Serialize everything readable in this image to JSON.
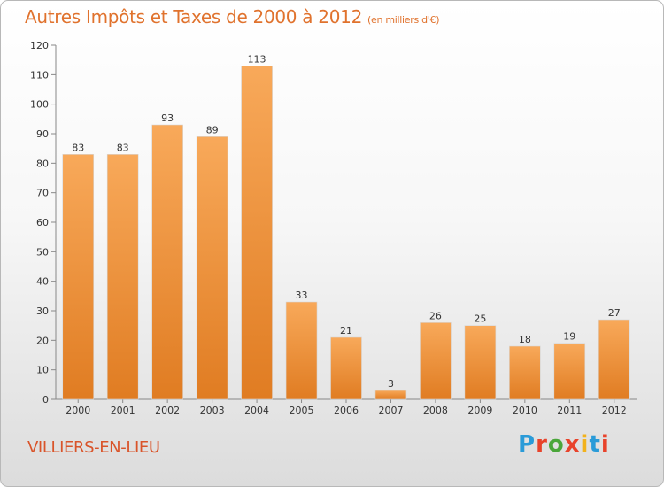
{
  "header": {
    "title": "Autres Impôts et Taxes de 2000 à 2012",
    "subtitle": "(en milliers d'€)"
  },
  "footer": {
    "commune": "VILLIERS-EN-LIEU",
    "logo_letters": [
      "P",
      "r",
      "o",
      "x",
      "i",
      "t",
      "i"
    ],
    "logo_colors": [
      "#2a9bd8",
      "#e8432b",
      "#4aa63a",
      "#e8432b",
      "#f2b21c",
      "#2a9bd8",
      "#e8432b"
    ]
  },
  "colors": {
    "bar_light": "#f8a95a",
    "bar_dark": "#e07c22",
    "accent": "#e0722d"
  },
  "chart_data": {
    "type": "bar",
    "categories": [
      "2000",
      "2001",
      "2002",
      "2003",
      "2004",
      "2005",
      "2006",
      "2007",
      "2008",
      "2009",
      "2010",
      "2011",
      "2012"
    ],
    "values": [
      83,
      83,
      93,
      89,
      113,
      33,
      21,
      3,
      26,
      25,
      18,
      19,
      27
    ],
    "ylim": [
      0,
      120
    ],
    "yticks": [
      0,
      10,
      20,
      30,
      40,
      50,
      60,
      70,
      80,
      90,
      100,
      110,
      120
    ],
    "grid": false,
    "data_labels": true
  }
}
